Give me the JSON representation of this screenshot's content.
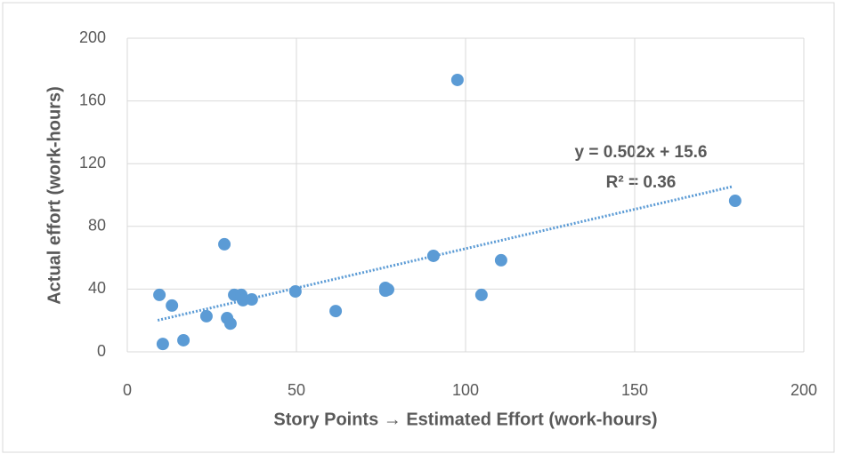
{
  "chart_data": {
    "type": "scatter",
    "xlabel": "Story Points → Estimated Effort (work-hours)",
    "ylabel": "Actual effort (work-hours)",
    "series": [
      {
        "color": "#5b9bd5",
        "x": [
          9.5,
          13.2,
          10.5,
          16.6,
          23.4,
          28.7,
          29.5,
          30.5,
          31.6,
          33.7,
          34.2,
          36.8,
          49.7,
          61.6,
          76.3,
          77.1,
          76.3,
          90.5,
          97.6,
          104.7,
          110.5,
          179.7
        ],
        "values": [
          36.3,
          29.5,
          5,
          7.4,
          22.7,
          68.6,
          21.5,
          18,
          36.3,
          36.3,
          32.9,
          33.4,
          38.5,
          26,
          40.8,
          39.7,
          39,
          61.2,
          173.4,
          36.3,
          58.4,
          96.3
        ]
      }
    ],
    "trendline": {
      "slope": 0.502,
      "intercept": 15.6,
      "x_range": [
        9,
        179
      ],
      "color": "#5b9bd5",
      "equation": "y = 0.502x + 15.6",
      "r_squared_label": "R² = 0.36"
    },
    "xlim": [
      0,
      200
    ],
    "xticks": [
      0,
      50,
      100,
      150,
      200
    ],
    "ylim": [
      0,
      200
    ],
    "yticks": [
      0,
      40,
      80,
      120,
      160,
      200
    ],
    "grid": true
  }
}
